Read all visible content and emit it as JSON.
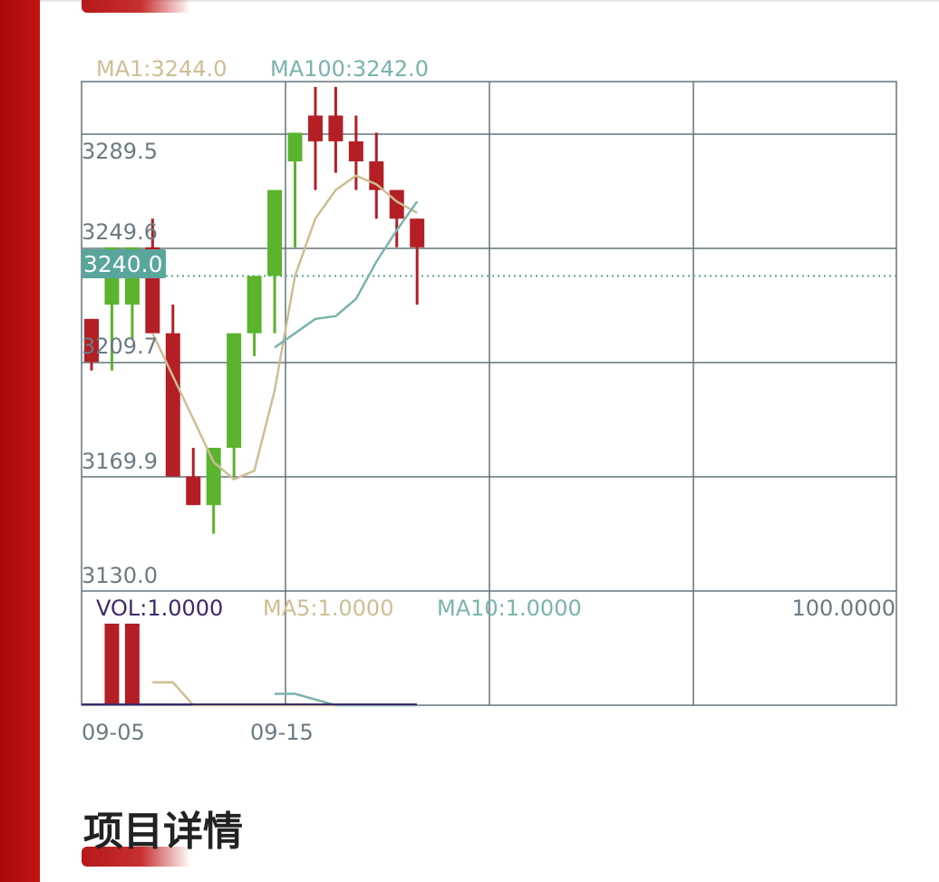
{
  "colors": {
    "up": "#5cb32e",
    "down": "#b31f25",
    "ma1": "#cdbe93",
    "ma100": "#7ab3ad",
    "grid": "#63757b",
    "badge": "#5aa59c",
    "vol": "#3d2a6b",
    "text": "#6b7a83"
  },
  "price_legend": {
    "ma1": "MA1:3244.0",
    "ma100": "MA100:3242.0"
  },
  "volume_legend": {
    "vol": "VOL:1.0000",
    "ma5": "MA5:1.0000",
    "ma10": "MA10:1.0000",
    "max": "100.0000"
  },
  "current_price_label": "3240.0",
  "section_title": "项目详情",
  "chart_data": {
    "type": "candlestick",
    "x_ticks": [
      "09-05",
      "09-15"
    ],
    "y_ticks": [
      "3289.5",
      "3249.6",
      "3209.7",
      "3169.9",
      "3130.0"
    ],
    "ylim": [
      3130.0,
      3289.5
    ],
    "current_price": 3240.0,
    "candles": [
      {
        "open": 3225,
        "close": 3210,
        "high": 3225,
        "low": 3207
      },
      {
        "open": 3230,
        "close": 3250,
        "high": 3250,
        "low": 3207
      },
      {
        "open": 3230,
        "close": 3250,
        "high": 3250,
        "low": 3218
      },
      {
        "open": 3250,
        "close": 3220,
        "high": 3260,
        "low": 3220
      },
      {
        "open": 3220,
        "close": 3170,
        "high": 3230,
        "low": 3170
      },
      {
        "open": 3170,
        "close": 3160,
        "high": 3180,
        "low": 3160
      },
      {
        "open": 3160,
        "close": 3180,
        "high": 3180,
        "low": 3150
      },
      {
        "open": 3180,
        "close": 3220,
        "high": 3220,
        "low": 3170
      },
      {
        "open": 3220,
        "close": 3240,
        "high": 3240,
        "low": 3212
      },
      {
        "open": 3240,
        "close": 3270,
        "high": 3270,
        "low": 3220
      },
      {
        "open": 3280,
        "close": 3290,
        "high": 3290,
        "low": 3250
      },
      {
        "open": 3296,
        "close": 3287,
        "high": 3306,
        "low": 3270
      },
      {
        "open": 3296,
        "close": 3287,
        "high": 3306,
        "low": 3276
      },
      {
        "open": 3287,
        "close": 3280,
        "high": 3296,
        "low": 3270
      },
      {
        "open": 3280,
        "close": 3270,
        "high": 3290,
        "low": 3260
      },
      {
        "open": 3270,
        "close": 3260,
        "high": 3270,
        "low": 3250
      },
      {
        "open": 3260,
        "close": 3250,
        "high": 3260,
        "low": 3230
      }
    ],
    "ma1": [
      null,
      null,
      null,
      3220,
      3205,
      3190,
      3175,
      3169,
      3172,
      3200,
      3240,
      3260,
      3270,
      3275,
      3272,
      3266,
      3262
    ],
    "ma100": [
      null,
      null,
      null,
      null,
      null,
      null,
      null,
      null,
      null,
      3215,
      3220,
      3225,
      3226,
      3232,
      3245,
      3256,
      3266
    ],
    "volumes": [
      0,
      100,
      100,
      0,
      0,
      0,
      0,
      0,
      0,
      0,
      0,
      0,
      0,
      0,
      0,
      0,
      0
    ],
    "vol_ma5": [
      null,
      null,
      null,
      28,
      28,
      0,
      0,
      0,
      0,
      0,
      0,
      0,
      0,
      0,
      0,
      0,
      0
    ],
    "vol_ma10": [
      null,
      null,
      null,
      null,
      null,
      null,
      null,
      null,
      null,
      14,
      14,
      7,
      0,
      0,
      0,
      0,
      0
    ],
    "volume_max": 100
  }
}
